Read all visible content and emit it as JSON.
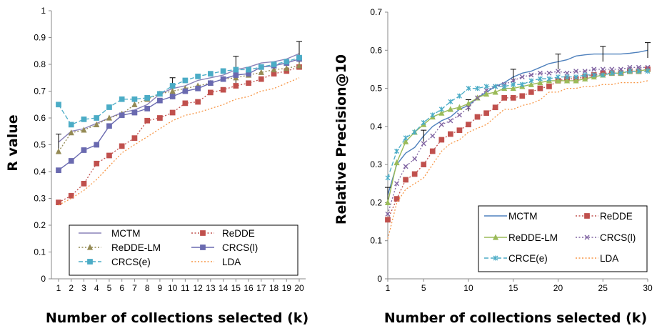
{
  "chart_data": [
    {
      "type": "line",
      "xlabel": "Number of collections selected (k)",
      "ylabel": "R value",
      "x": [
        1,
        2,
        3,
        4,
        5,
        6,
        7,
        8,
        9,
        10,
        11,
        12,
        13,
        14,
        15,
        16,
        17,
        18,
        19,
        20
      ],
      "xticks": [
        "1",
        "2",
        "3",
        "4",
        "5",
        "6",
        "7",
        "8",
        "9",
        "10",
        "11",
        "12",
        "13",
        "14",
        "15",
        "16",
        "17",
        "18",
        "19",
        "20"
      ],
      "ylim": [
        0,
        1
      ],
      "yticks": [
        "0",
        "0.1",
        "0.2",
        "0.3",
        "0.4",
        "0.5",
        "0.6",
        "0.7",
        "0.8",
        "0.9",
        "1"
      ],
      "grid": false,
      "legend_position": "bottom",
      "series": [
        {
          "name": "MCTM",
          "color": "#8a82b8",
          "style": "solid",
          "marker": "none",
          "values": [
            0.51,
            0.55,
            0.56,
            0.58,
            0.6,
            0.62,
            0.63,
            0.65,
            0.69,
            0.71,
            0.72,
            0.74,
            0.75,
            0.76,
            0.78,
            0.79,
            0.805,
            0.81,
            0.82,
            0.84
          ],
          "error_bars": [
            {
              "x": 1,
              "err": 0.03
            },
            {
              "x": 10,
              "err": 0.04
            },
            {
              "x": 15,
              "err": 0.05
            },
            {
              "x": 20,
              "err": 0.045
            }
          ]
        },
        {
          "name": "ReDDE",
          "color": "#c0504d",
          "style": "dotted",
          "marker": "square",
          "values": [
            0.285,
            0.31,
            0.355,
            0.43,
            0.46,
            0.495,
            0.525,
            0.59,
            0.6,
            0.62,
            0.655,
            0.66,
            0.695,
            0.705,
            0.72,
            0.73,
            0.745,
            0.765,
            0.775,
            0.79
          ]
        },
        {
          "name": "ReDDE-LM",
          "color": "#948a54",
          "style": "dotted",
          "marker": "triangle",
          "values": [
            0.475,
            0.545,
            0.555,
            0.575,
            0.6,
            0.615,
            0.65,
            0.67,
            0.69,
            0.7,
            0.71,
            0.72,
            0.73,
            0.745,
            0.75,
            0.76,
            0.77,
            0.78,
            0.785,
            0.795
          ]
        },
        {
          "name": "CRCS(l)",
          "color": "#6a6ab0",
          "style": "solid",
          "marker": "square",
          "values": [
            0.405,
            0.44,
            0.48,
            0.5,
            0.57,
            0.61,
            0.62,
            0.635,
            0.665,
            0.68,
            0.7,
            0.71,
            0.73,
            0.745,
            0.76,
            0.765,
            0.79,
            0.795,
            0.805,
            0.82
          ]
        },
        {
          "name": "CRCS(e)",
          "color": "#4bacc6",
          "style": "dashed",
          "marker": "square",
          "values": [
            0.65,
            0.575,
            0.595,
            0.6,
            0.64,
            0.67,
            0.67,
            0.675,
            0.69,
            0.72,
            0.74,
            0.755,
            0.765,
            0.775,
            0.78,
            0.78,
            0.79,
            0.8,
            0.81,
            0.825
          ]
        },
        {
          "name": "LDA",
          "color": "#f79646",
          "style": "dotted",
          "marker": "none",
          "values": [
            0.275,
            0.3,
            0.33,
            0.37,
            0.42,
            0.47,
            0.5,
            0.53,
            0.56,
            0.59,
            0.61,
            0.62,
            0.635,
            0.65,
            0.67,
            0.68,
            0.7,
            0.71,
            0.73,
            0.75
          ]
        }
      ],
      "legend_order": [
        "MCTM",
        "ReDDE",
        "ReDDE-LM",
        "CRCS(l)",
        "CRCS(e)",
        "LDA"
      ]
    },
    {
      "type": "line",
      "xlabel": "Number of collections selected (k)",
      "ylabel": "Relative Precision@10",
      "x": [
        1,
        2,
        3,
        4,
        5,
        6,
        7,
        8,
        9,
        10,
        11,
        12,
        13,
        14,
        15,
        16,
        17,
        18,
        19,
        20,
        21,
        22,
        23,
        24,
        25,
        26,
        27,
        28,
        29,
        30
      ],
      "xticks": [
        "1",
        "5",
        "10",
        "15",
        "20",
        "25",
        "30"
      ],
      "ylim": [
        0,
        0.7
      ],
      "yticks": [
        "0",
        "0.1",
        "0.2",
        "0.3",
        "0.4",
        "0.5",
        "0.6",
        "0.7"
      ],
      "grid": false,
      "legend_position": "bottom-right",
      "series": [
        {
          "name": "MCTM",
          "color": "#4f81bd",
          "style": "solid",
          "marker": "none",
          "values": [
            0.22,
            0.3,
            0.33,
            0.345,
            0.375,
            0.4,
            0.415,
            0.425,
            0.445,
            0.455,
            0.475,
            0.49,
            0.505,
            0.515,
            0.53,
            0.54,
            0.545,
            0.555,
            0.565,
            0.57,
            0.575,
            0.585,
            0.588,
            0.59,
            0.59,
            0.59,
            0.59,
            0.592,
            0.595,
            0.6
          ],
          "error_bars": [
            {
              "x": 1,
              "err": 0.02
            },
            {
              "x": 5,
              "err": 0.015
            },
            {
              "x": 10,
              "err": 0.015
            },
            {
              "x": 15,
              "err": 0.02
            },
            {
              "x": 20,
              "err": 0.02
            },
            {
              "x": 25,
              "err": 0.02
            },
            {
              "x": 30,
              "err": 0.02
            }
          ]
        },
        {
          "name": "ReDDE",
          "color": "#c0504d",
          "style": "dotted",
          "marker": "square",
          "values": [
            0.155,
            0.21,
            0.26,
            0.275,
            0.3,
            0.335,
            0.365,
            0.38,
            0.39,
            0.405,
            0.425,
            0.435,
            0.45,
            0.475,
            0.475,
            0.48,
            0.49,
            0.5,
            0.505,
            0.52,
            0.525,
            0.525,
            0.53,
            0.535,
            0.54,
            0.54,
            0.54,
            0.545,
            0.545,
            0.55
          ]
        },
        {
          "name": "ReDDE-LM",
          "color": "#9bbb59",
          "style": "solid",
          "marker": "triangle",
          "values": [
            0.2,
            0.305,
            0.36,
            0.385,
            0.405,
            0.425,
            0.435,
            0.445,
            0.45,
            0.46,
            0.475,
            0.485,
            0.49,
            0.5,
            0.5,
            0.505,
            0.51,
            0.515,
            0.52,
            0.52,
            0.52,
            0.52,
            0.525,
            0.53,
            0.535,
            0.54,
            0.54,
            0.545,
            0.545,
            0.55
          ]
        },
        {
          "name": "CRCS(l)",
          "color": "#8064a2",
          "style": "dotted",
          "marker": "x",
          "values": [
            0.17,
            0.25,
            0.295,
            0.315,
            0.355,
            0.375,
            0.405,
            0.415,
            0.43,
            0.45,
            0.475,
            0.495,
            0.505,
            0.51,
            0.52,
            0.53,
            0.535,
            0.54,
            0.54,
            0.545,
            0.54,
            0.545,
            0.545,
            0.55,
            0.55,
            0.55,
            0.55,
            0.555,
            0.555,
            0.555
          ]
        },
        {
          "name": "CRCE(e)",
          "color": "#4bacc6",
          "style": "dashed",
          "marker": "star",
          "values": [
            0.265,
            0.335,
            0.37,
            0.385,
            0.41,
            0.43,
            0.445,
            0.465,
            0.48,
            0.5,
            0.5,
            0.505,
            0.505,
            0.505,
            0.51,
            0.51,
            0.52,
            0.525,
            0.525,
            0.53,
            0.53,
            0.53,
            0.535,
            0.535,
            0.535,
            0.54,
            0.54,
            0.545,
            0.545,
            0.545
          ]
        },
        {
          "name": "LDA",
          "color": "#f79646",
          "style": "dotted",
          "marker": "none",
          "values": [
            0.105,
            0.2,
            0.235,
            0.25,
            0.265,
            0.3,
            0.335,
            0.355,
            0.365,
            0.385,
            0.395,
            0.405,
            0.425,
            0.445,
            0.445,
            0.455,
            0.46,
            0.47,
            0.49,
            0.49,
            0.5,
            0.5,
            0.505,
            0.505,
            0.51,
            0.51,
            0.515,
            0.515,
            0.515,
            0.52
          ]
        }
      ],
      "legend_order": [
        "MCTM",
        "ReDDE",
        "ReDDE-LM",
        "CRCS(l)",
        "CRCE(e)",
        "LDA"
      ]
    }
  ]
}
